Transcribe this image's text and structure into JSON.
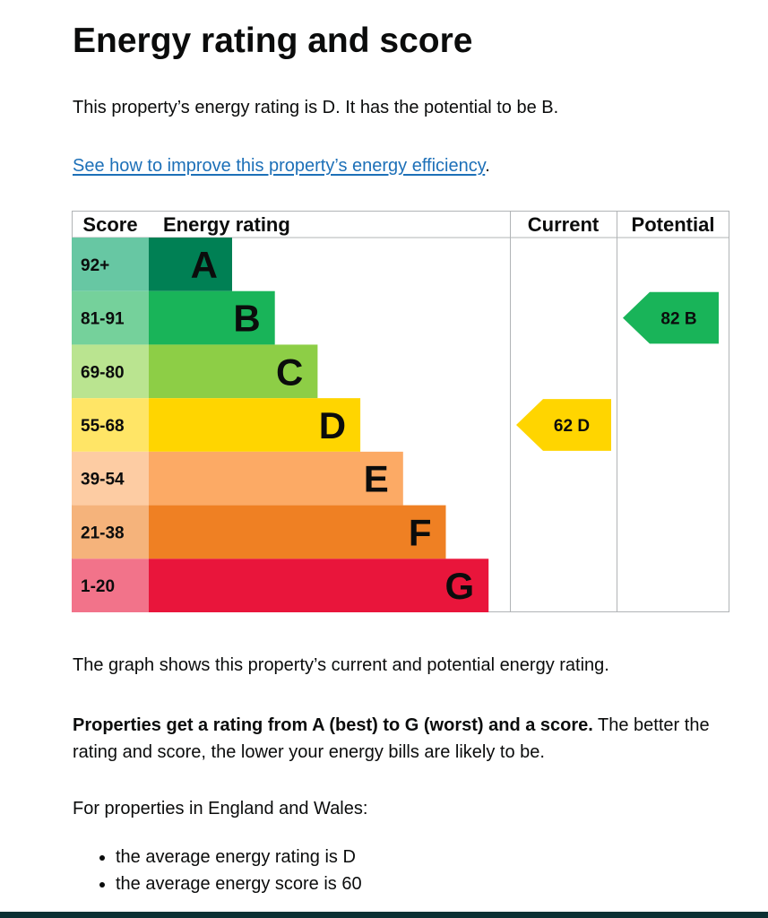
{
  "page": {
    "title": "Energy rating and score",
    "summary": "This property’s energy rating is D. It has the potential to be B.",
    "improve_link": "See how to improve this property’s energy efficiency",
    "improve_link_suffix": ".",
    "graph_note": "The graph shows this property’s current and potential energy rating.",
    "ratings_note_bold": "Properties get a rating from A (best) to G (worst) and a score.",
    "ratings_note_rest": " The better the rating and score, the lower your energy bills are likely to be.",
    "region_intro": "For properties in England and Wales:",
    "averages": [
      "the average energy rating is D",
      "the average energy score is 60"
    ]
  },
  "chart_data": {
    "type": "bar",
    "columns": [
      "Score",
      "Energy rating",
      "Current",
      "Potential"
    ],
    "bands": [
      {
        "range": "92+",
        "letter": "A",
        "color": "#008054",
        "range_color": "#67c7a3"
      },
      {
        "range": "81-91",
        "letter": "B",
        "color": "#19b459",
        "range_color": "#75d19b"
      },
      {
        "range": "69-80",
        "letter": "C",
        "color": "#8dce46",
        "range_color": "#bae490"
      },
      {
        "range": "55-68",
        "letter": "D",
        "color": "#ffd500",
        "range_color": "#ffe566"
      },
      {
        "range": "39-54",
        "letter": "E",
        "color": "#fcaa65",
        "range_color": "#fdcca3"
      },
      {
        "range": "21-38",
        "letter": "F",
        "color": "#ef8023",
        "range_color": "#f5b37b"
      },
      {
        "range": "1-20",
        "letter": "G",
        "color": "#e9153b",
        "range_color": "#f2738a"
      }
    ],
    "current": {
      "score": 62,
      "letter": "D",
      "color": "#ffd500"
    },
    "potential": {
      "score": 82,
      "letter": "B",
      "color": "#19b459"
    }
  }
}
